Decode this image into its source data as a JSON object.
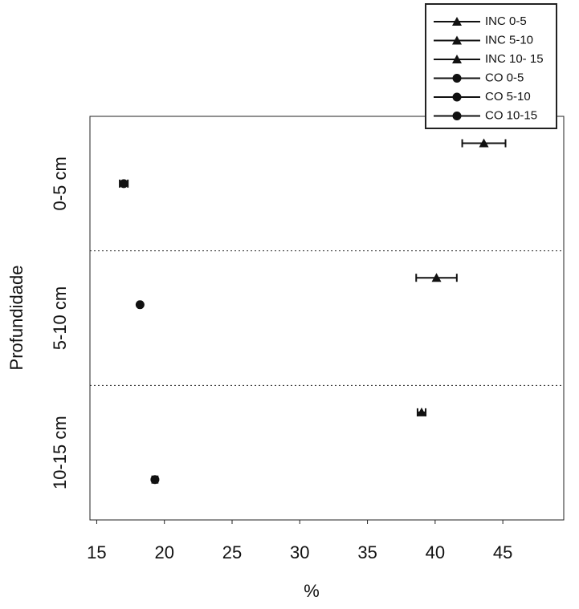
{
  "chart_data": {
    "type": "scatter",
    "x_label": "%",
    "y_label": "Profundidade",
    "categories": [
      "0-5 cm",
      "5-10 cm",
      "10-15 cm"
    ],
    "xlim": [
      14.5,
      49.5
    ],
    "xticks": [
      15,
      20,
      25,
      30,
      35,
      40,
      45
    ],
    "legend": "upper right",
    "series": [
      {
        "name": "INC 0-5",
        "marker": "triangle",
        "color": "#111111",
        "values": [
          43.6,
          null,
          null
        ],
        "errors": [
          1.6,
          null,
          null
        ]
      },
      {
        "name": "INC 5-10",
        "marker": "triangle",
        "color": "#111111",
        "values": [
          null,
          40.1,
          null
        ],
        "errors": [
          null,
          1.5,
          null
        ]
      },
      {
        "name": "INC 10- 15",
        "marker": "triangle",
        "color": "#111111",
        "values": [
          null,
          null,
          39.0
        ],
        "errors": [
          null,
          null,
          0.3
        ]
      },
      {
        "name": "CO 0-5",
        "marker": "circle",
        "color": "#111111",
        "values": [
          17.0,
          null,
          null
        ],
        "errors": [
          0.3,
          null,
          null
        ]
      },
      {
        "name": "CO 5-10",
        "marker": "circle",
        "color": "#111111",
        "values": [
          null,
          18.2,
          null
        ],
        "errors": [
          null,
          0.1,
          null
        ]
      },
      {
        "name": "CO 10-15",
        "marker": "circle",
        "color": "#111111",
        "values": [
          null,
          null,
          19.3
        ],
        "errors": [
          null,
          null,
          0.2
        ]
      }
    ]
  }
}
